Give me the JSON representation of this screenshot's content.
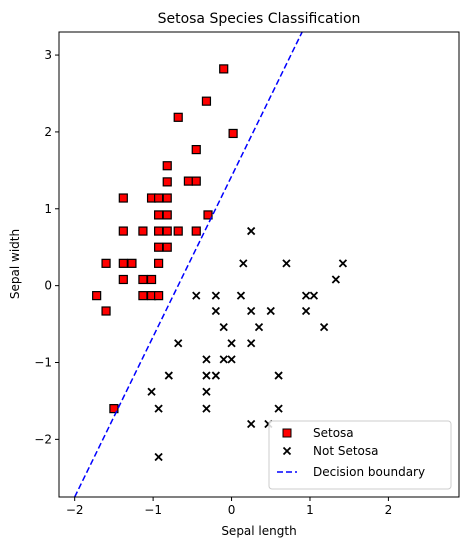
{
  "chart_data": {
    "type": "scatter",
    "title": "Setosa Species Classification",
    "xlabel": "Sepal length",
    "ylabel": "Sepal width",
    "xlim": [
      -2.2,
      2.9
    ],
    "ylim": [
      -2.75,
      3.3
    ],
    "xticks": [
      -2,
      -1,
      0,
      1,
      2
    ],
    "yticks": [
      -2,
      -1,
      0,
      1,
      2,
      3
    ],
    "legend_position": "lower right",
    "grid": false,
    "series": [
      {
        "name": "Setosa",
        "marker": "square",
        "color": "#ff0000",
        "edgecolor": "#000000",
        "points": [
          [
            -0.1,
            2.82
          ],
          [
            -0.32,
            2.4
          ],
          [
            0.02,
            1.98
          ],
          [
            -0.68,
            2.19
          ],
          [
            -0.45,
            1.77
          ],
          [
            -0.82,
            1.56
          ],
          [
            -0.55,
            1.36
          ],
          [
            -0.45,
            1.36
          ],
          [
            -0.82,
            1.35
          ],
          [
            -1.38,
            1.14
          ],
          [
            -1.02,
            1.14
          ],
          [
            -0.93,
            1.14
          ],
          [
            -0.82,
            1.14
          ],
          [
            -0.93,
            0.92
          ],
          [
            -0.82,
            0.92
          ],
          [
            -0.3,
            0.92
          ],
          [
            -1.38,
            0.71
          ],
          [
            -1.13,
            0.71
          ],
          [
            -0.93,
            0.71
          ],
          [
            -0.82,
            0.71
          ],
          [
            -0.68,
            0.71
          ],
          [
            -0.45,
            0.71
          ],
          [
            -0.93,
            0.5
          ],
          [
            -0.82,
            0.5
          ],
          [
            -1.6,
            0.29
          ],
          [
            -1.38,
            0.29
          ],
          [
            -1.27,
            0.29
          ],
          [
            -0.93,
            0.29
          ],
          [
            -1.38,
            0.08
          ],
          [
            -1.13,
            0.08
          ],
          [
            -1.02,
            0.08
          ],
          [
            -1.72,
            -0.13
          ],
          [
            -1.13,
            -0.13
          ],
          [
            -1.02,
            -0.13
          ],
          [
            -0.93,
            -0.13
          ],
          [
            -1.6,
            -0.33
          ],
          [
            -1.5,
            -1.6
          ]
        ]
      },
      {
        "name": "Not Setosa",
        "marker": "x",
        "color": "#000000",
        "points": [
          [
            0.25,
            0.71
          ],
          [
            0.15,
            0.29
          ],
          [
            0.7,
            0.29
          ],
          [
            1.42,
            0.29
          ],
          [
            1.33,
            0.08
          ],
          [
            -0.45,
            -0.13
          ],
          [
            -0.2,
            -0.13
          ],
          [
            0.12,
            -0.13
          ],
          [
            0.95,
            -0.13
          ],
          [
            1.05,
            -0.13
          ],
          [
            -0.2,
            -0.33
          ],
          [
            0.25,
            -0.33
          ],
          [
            0.5,
            -0.33
          ],
          [
            0.95,
            -0.33
          ],
          [
            -0.1,
            -0.54
          ],
          [
            0.35,
            -0.54
          ],
          [
            1.18,
            -0.54
          ],
          [
            -0.68,
            -0.75
          ],
          [
            0.0,
            -0.75
          ],
          [
            0.25,
            -0.75
          ],
          [
            -0.1,
            -0.96
          ],
          [
            0.0,
            -0.96
          ],
          [
            -0.32,
            -0.96
          ],
          [
            -0.8,
            -1.17
          ],
          [
            -0.32,
            -1.17
          ],
          [
            -0.2,
            -1.17
          ],
          [
            0.6,
            -1.17
          ],
          [
            -1.02,
            -1.38
          ],
          [
            -0.32,
            -1.38
          ],
          [
            -0.93,
            -1.6
          ],
          [
            -0.32,
            -1.6
          ],
          [
            0.6,
            -1.6
          ],
          [
            0.25,
            -1.8
          ],
          [
            0.47,
            -1.8
          ],
          [
            -0.93,
            -2.23
          ]
        ]
      }
    ],
    "decision_boundary": {
      "name": "Decision boundary",
      "style": "dashed",
      "color": "#0000ff",
      "line": [
        [
          -2.0,
          -2.75
        ],
        [
          0.9,
          3.3
        ]
      ]
    }
  }
}
